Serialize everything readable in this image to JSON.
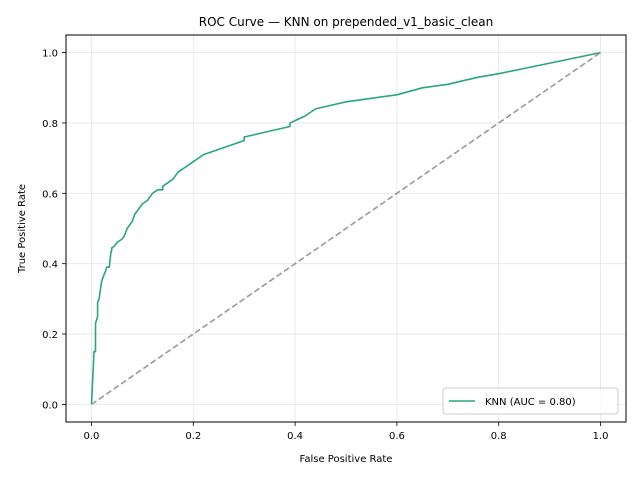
{
  "chart_data": {
    "type": "line",
    "title": "ROC Curve — KNN on prepended_v1_basic_clean",
    "xlabel": "False Positive Rate",
    "ylabel": "True Positive Rate",
    "xlim": [
      -0.05,
      1.05
    ],
    "ylim": [
      -0.05,
      1.05
    ],
    "xticks": [
      0.0,
      0.2,
      0.4,
      0.6,
      0.8,
      1.0
    ],
    "yticks": [
      0.0,
      0.2,
      0.4,
      0.6,
      0.8,
      1.0
    ],
    "xtick_labels": [
      "0.0",
      "0.2",
      "0.4",
      "0.6",
      "0.8",
      "1.0"
    ],
    "ytick_labels": [
      "0.0",
      "0.2",
      "0.4",
      "0.6",
      "0.8",
      "1.0"
    ],
    "grid": true,
    "legend_position": "bottom-right",
    "series": [
      {
        "name": "KNN (AUC = 0.80)",
        "color": "#2aa584",
        "style": "solid",
        "x": [
          0.0,
          0.005,
          0.008,
          0.008,
          0.012,
          0.012,
          0.015,
          0.018,
          0.02,
          0.025,
          0.028,
          0.03,
          0.035,
          0.038,
          0.04,
          0.04,
          0.045,
          0.05,
          0.055,
          0.06,
          0.065,
          0.07,
          0.075,
          0.08,
          0.085,
          0.09,
          0.095,
          0.1,
          0.11,
          0.12,
          0.13,
          0.14,
          0.14,
          0.15,
          0.16,
          0.17,
          0.18,
          0.19,
          0.2,
          0.21,
          0.22,
          0.24,
          0.26,
          0.28,
          0.3,
          0.3,
          0.33,
          0.36,
          0.39,
          0.39,
          0.42,
          0.44,
          0.47,
          0.5,
          0.55,
          0.6,
          0.65,
          0.7,
          0.73,
          0.76,
          0.8,
          1.0
        ],
        "y": [
          0.0,
          0.15,
          0.15,
          0.23,
          0.25,
          0.29,
          0.3,
          0.33,
          0.35,
          0.37,
          0.38,
          0.39,
          0.39,
          0.43,
          0.44,
          0.445,
          0.45,
          0.46,
          0.465,
          0.47,
          0.48,
          0.5,
          0.51,
          0.52,
          0.54,
          0.55,
          0.56,
          0.57,
          0.58,
          0.6,
          0.61,
          0.61,
          0.62,
          0.63,
          0.64,
          0.66,
          0.67,
          0.68,
          0.69,
          0.7,
          0.71,
          0.72,
          0.73,
          0.74,
          0.75,
          0.76,
          0.77,
          0.78,
          0.79,
          0.8,
          0.82,
          0.84,
          0.85,
          0.86,
          0.87,
          0.88,
          0.9,
          0.91,
          0.92,
          0.93,
          0.94,
          1.0
        ]
      },
      {
        "name": "",
        "color": "#999999",
        "style": "dashed",
        "x": [
          0.0,
          1.0
        ],
        "y": [
          0.0,
          1.0
        ]
      }
    ]
  }
}
